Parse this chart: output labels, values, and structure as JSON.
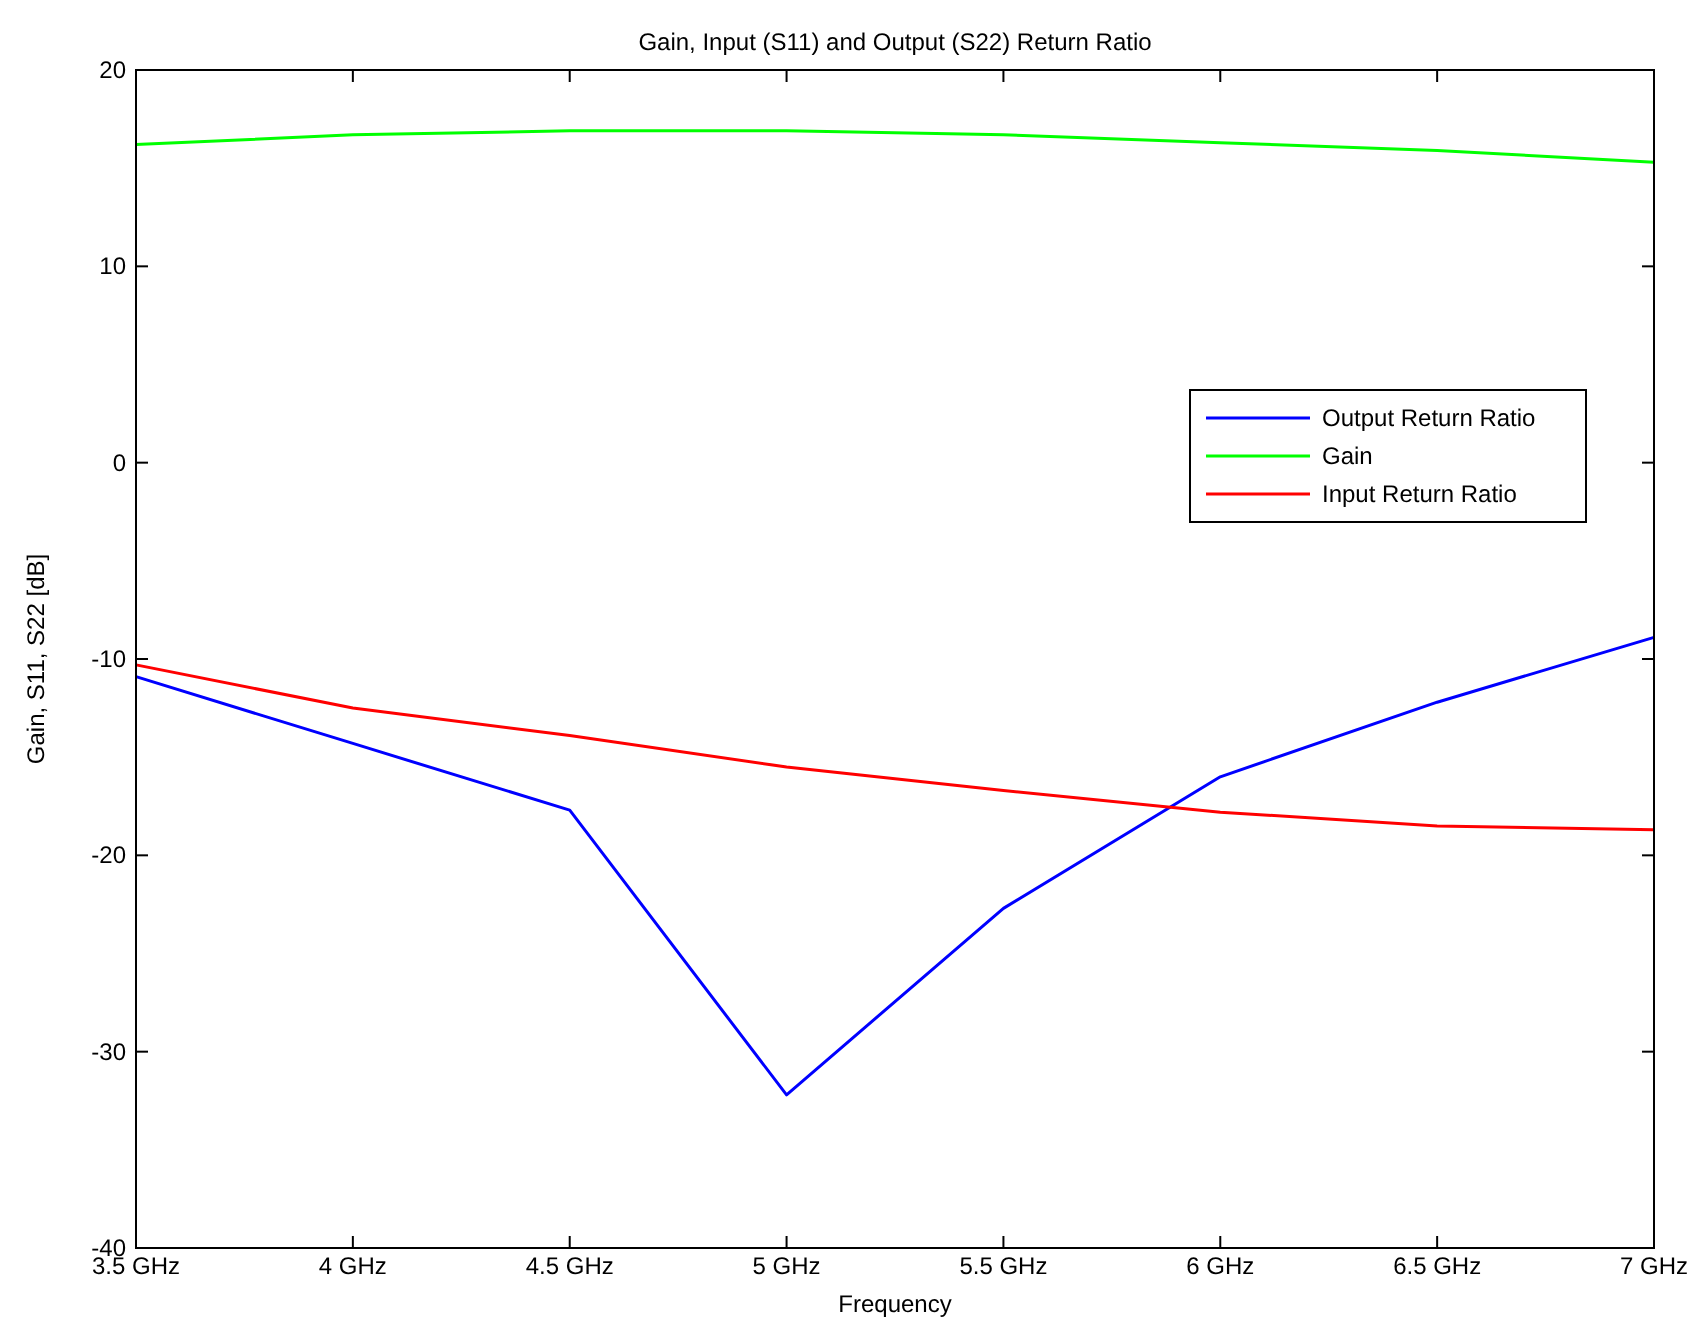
{
  "chart_data": {
    "type": "line",
    "title": "Gain, Input (S11) and Output (S22) Return Ratio",
    "xlabel": "Frequency",
    "ylabel": "Gain, S11, S22 [dB]",
    "x": [
      3.5,
      4,
      4.5,
      5,
      5.5,
      6,
      6.5,
      7
    ],
    "series": [
      {
        "name": "Output Return Ratio",
        "color": "#0000ff",
        "values": [
          -10.9,
          -14.3,
          -17.7,
          -32.2,
          -22.7,
          -16.0,
          -12.2,
          -8.9
        ]
      },
      {
        "name": "Gain",
        "color": "#00ff00",
        "values": [
          16.2,
          16.7,
          16.9,
          16.9,
          16.7,
          16.3,
          15.9,
          15.3
        ]
      },
      {
        "name": "Input Return Ratio",
        "color": "#ff0000",
        "values": [
          -10.3,
          -12.5,
          -13.9,
          -15.5,
          -16.7,
          -17.8,
          -18.5,
          -18.7
        ]
      }
    ],
    "xlim": [
      3.5,
      7
    ],
    "xticks": [
      {
        "value": 3.5,
        "label": "3.5 GHz"
      },
      {
        "value": 4,
        "label": "4 GHz"
      },
      {
        "value": 4.5,
        "label": "4.5 GHz"
      },
      {
        "value": 5,
        "label": "5 GHz"
      },
      {
        "value": 5.5,
        "label": "5.5 GHz"
      },
      {
        "value": 6,
        "label": "6 GHz"
      },
      {
        "value": 6.5,
        "label": "6.5 GHz"
      },
      {
        "value": 7,
        "label": "7 GHz"
      }
    ],
    "ylim": [
      -40,
      20
    ],
    "yticks": [
      -40,
      -30,
      -20,
      -10,
      0,
      10,
      20
    ],
    "grid": false,
    "legend": "right",
    "marker": "none",
    "line_style": "solid"
  }
}
